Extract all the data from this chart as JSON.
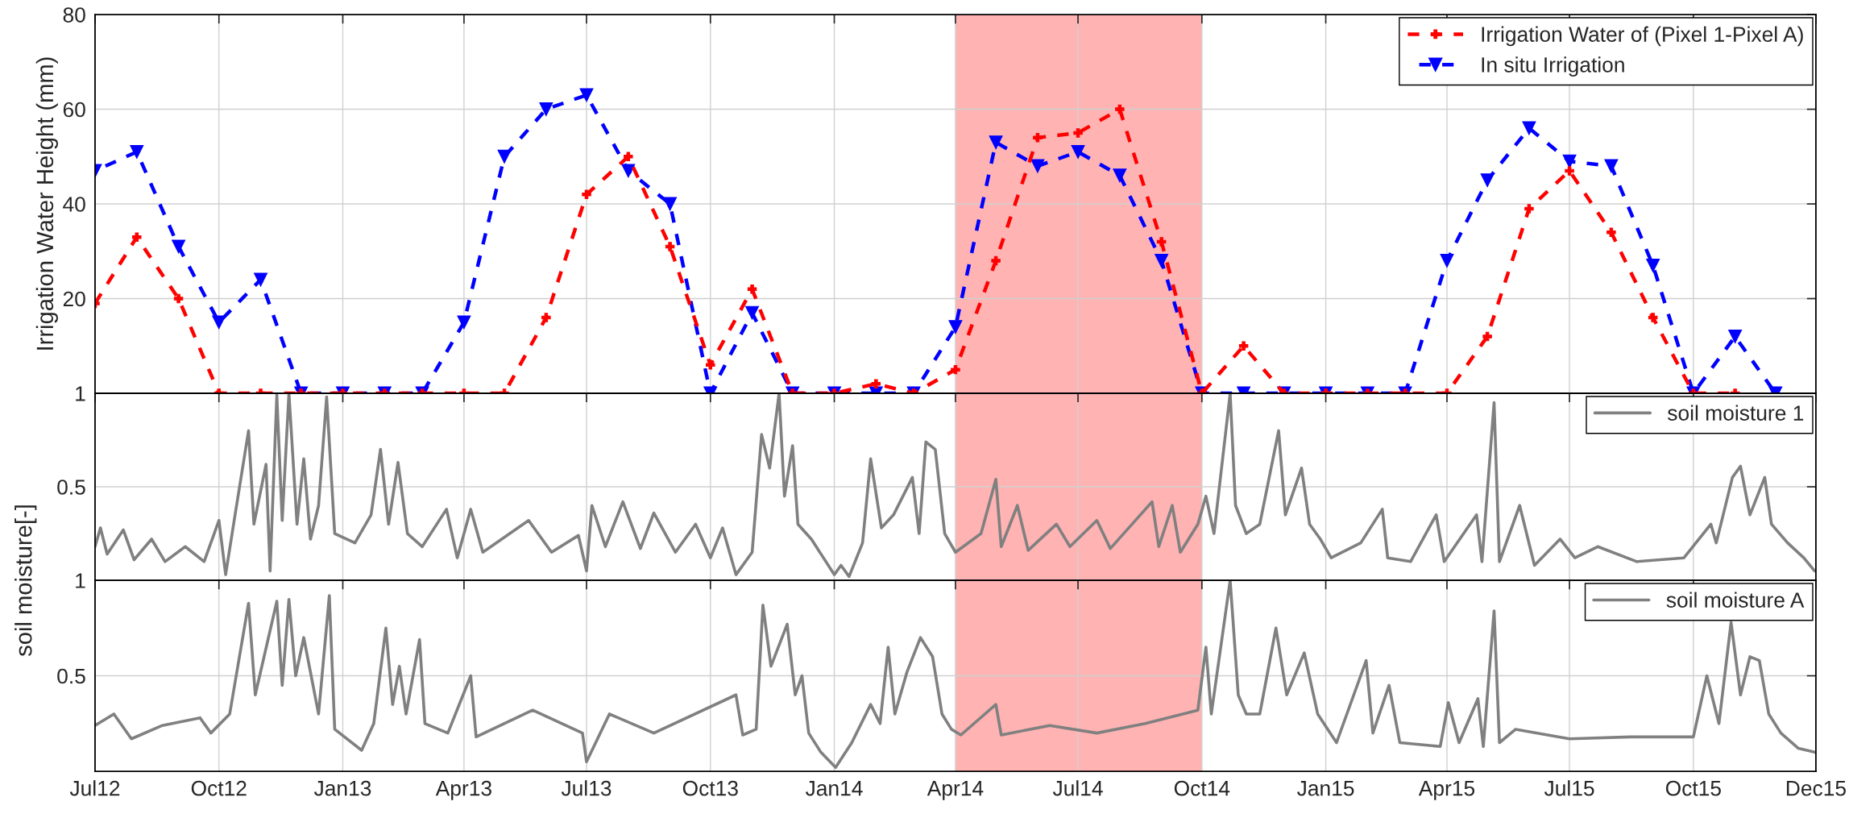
{
  "chart_data": [
    {
      "type": "line",
      "ylabel": "Irrigation Water Height (mm)",
      "xlim": [
        "2012-07-01",
        "2015-12-31"
      ],
      "ylim": [
        0,
        80
      ],
      "yticks": [
        20,
        40,
        60,
        80
      ],
      "xticks": [
        {
          "value": "2012-07-01",
          "label": null
        },
        {
          "value": "2012-10-01",
          "label": null
        },
        {
          "value": "2013-01-01",
          "label": null
        },
        {
          "value": "2013-04-01",
          "label": null
        },
        {
          "value": "2013-07-01",
          "label": null
        },
        {
          "value": "2013-10-01",
          "label": null
        },
        {
          "value": "2014-01-01",
          "label": null
        },
        {
          "value": "2014-04-01",
          "label": null
        },
        {
          "value": "2014-07-01",
          "label": null
        },
        {
          "value": "2014-10-01",
          "label": null
        },
        {
          "value": "2015-01-01",
          "label": null
        },
        {
          "value": "2015-04-01",
          "label": null
        },
        {
          "value": "2015-07-01",
          "label": null
        },
        {
          "value": "2015-10-01",
          "label": null
        },
        {
          "value": "2015-12-31",
          "label": null
        }
      ],
      "tick_labels": "y",
      "grid": true,
      "legend": "top right",
      "line_style": "dashed",
      "x": [
        "2012-07",
        "2012-08",
        "2012-09",
        "2012-10",
        "2012-11",
        "2012-12",
        "2013-01",
        "2013-02",
        "2013-03",
        "2013-04",
        "2013-05",
        "2013-06",
        "2013-07",
        "2013-08",
        "2013-09",
        "2013-10",
        "2013-11",
        "2013-12",
        "2014-01",
        "2014-02",
        "2014-03",
        "2014-04",
        "2014-05",
        "2014-06",
        "2014-07",
        "2014-08",
        "2014-09",
        "2014-10",
        "2014-11",
        "2014-12",
        "2015-01",
        "2015-02",
        "2015-03",
        "2015-04",
        "2015-05",
        "2015-06",
        "2015-07",
        "2015-08",
        "2015-09",
        "2015-10",
        "2015-11",
        "2015-12"
      ],
      "bands": [
        {
          "axis": "x",
          "from": "2014-04-01",
          "to": "2014-10-01",
          "color": "#ffb3b3"
        }
      ],
      "series": [
        {
          "name": "Irrigation Water of (Pixel 1-Pixel A)",
          "color": "#ff0000",
          "marker": "cross",
          "values": [
            19,
            33,
            20,
            0,
            0,
            0,
            0,
            0,
            0,
            0,
            0,
            16,
            42,
            50,
            31,
            6,
            22,
            0,
            0,
            2,
            0,
            5,
            28,
            54,
            55,
            60,
            32,
            0,
            10,
            0,
            0,
            0,
            0,
            0,
            12,
            39,
            47,
            34,
            16,
            0,
            0,
            null
          ]
        },
        {
          "name": "In situ Irrigation",
          "color": "#0000ff",
          "marker": "triangle",
          "values": [
            47,
            51,
            31,
            15,
            24,
            0,
            0,
            0,
            0,
            15,
            50,
            60,
            63,
            47,
            40,
            0,
            17,
            0,
            0,
            0,
            0,
            14,
            53,
            48,
            51,
            46,
            28,
            0,
            0,
            0,
            0,
            0,
            0,
            28,
            45,
            56,
            49,
            48,
            27,
            0,
            12,
            0
          ]
        }
      ]
    },
    {
      "type": "line",
      "ylabel": "soil moisture[-]",
      "xlim": [
        "2012-07-01",
        "2015-12-31"
      ],
      "ylim": [
        0,
        1
      ],
      "yticks": [
        0.5,
        1
      ],
      "xticks": [
        {
          "value": "2012-07-01",
          "label": null
        },
        {
          "value": "2012-10-01",
          "label": null
        },
        {
          "value": "2013-01-01",
          "label": null
        },
        {
          "value": "2013-04-01",
          "label": null
        },
        {
          "value": "2013-07-01",
          "label": null
        },
        {
          "value": "2013-10-01",
          "label": null
        },
        {
          "value": "2014-01-01",
          "label": null
        },
        {
          "value": "2014-04-01",
          "label": null
        },
        {
          "value": "2014-07-01",
          "label": null
        },
        {
          "value": "2014-10-01",
          "label": null
        },
        {
          "value": "2015-01-01",
          "label": null
        },
        {
          "value": "2015-04-01",
          "label": null
        },
        {
          "value": "2015-07-01",
          "label": null
        },
        {
          "value": "2015-10-01",
          "label": null
        },
        {
          "value": "2015-12-31",
          "label": null
        }
      ],
      "tick_labels": "y",
      "grid": true,
      "legend": "top right",
      "line_style": "solid",
      "bands": [
        {
          "axis": "x",
          "from": "2014-04-01",
          "to": "2014-10-01",
          "color": "#ffb3b3"
        }
      ],
      "series": [
        {
          "name": "soil moisture 1",
          "color": "#808080",
          "x": [
            "2012-07-01",
            "2012-07-05",
            "2012-07-10",
            "2012-07-22",
            "2012-07-30",
            "2012-08-12",
            "2012-08-22",
            "2012-09-06",
            "2012-09-20",
            "2012-10-01",
            "2012-10-06",
            "2012-10-13",
            "2012-10-23",
            "2012-10-27",
            "2012-11-05",
            "2012-11-08",
            "2012-11-13",
            "2012-11-17",
            "2012-11-22",
            "2012-11-28",
            "2012-12-03",
            "2012-12-08",
            "2012-12-14",
            "2012-12-20",
            "2012-12-26",
            "2013-01-10",
            "2013-01-22",
            "2013-01-29",
            "2013-02-04",
            "2013-02-11",
            "2013-02-18",
            "2013-03-01",
            "2013-03-19",
            "2013-03-27",
            "2013-04-06",
            "2013-04-15",
            "2013-05-19",
            "2013-06-05",
            "2013-06-25",
            "2013-07-01",
            "2013-07-05",
            "2013-07-15",
            "2013-07-28",
            "2013-08-10",
            "2013-08-20",
            "2013-09-05",
            "2013-09-20",
            "2013-10-01",
            "2013-10-10",
            "2013-10-20",
            "2013-11-01",
            "2013-11-08",
            "2013-11-14",
            "2013-11-21",
            "2013-11-25",
            "2013-12-01",
            "2013-12-05",
            "2013-12-15",
            "2014-01-01",
            "2014-01-06",
            "2014-01-12",
            "2014-01-22",
            "2014-01-28",
            "2014-02-05",
            "2014-02-14",
            "2014-02-28",
            "2014-03-05",
            "2014-03-10",
            "2014-03-17",
            "2014-03-24",
            "2014-04-01",
            "2014-04-20",
            "2014-05-01",
            "2014-05-05",
            "2014-05-17",
            "2014-05-25",
            "2014-06-15",
            "2014-06-25",
            "2014-07-15",
            "2014-07-25",
            "2014-08-25",
            "2014-08-30",
            "2014-09-09",
            "2014-09-15",
            "2014-09-28",
            "2014-10-04",
            "2014-10-10",
            "2014-10-22",
            "2014-10-26",
            "2014-11-03",
            "2014-11-13",
            "2014-11-27",
            "2014-12-02",
            "2014-12-14",
            "2014-12-20",
            "2014-12-28",
            "2015-01-05",
            "2015-01-27",
            "2015-02-12",
            "2015-02-16",
            "2015-03-05",
            "2015-03-24",
            "2015-03-30",
            "2015-04-23",
            "2015-04-27",
            "2015-05-06",
            "2015-05-10",
            "2015-05-25",
            "2015-06-05",
            "2015-06-24",
            "2015-07-05",
            "2015-07-22",
            "2015-08-20",
            "2015-09-24",
            "2015-10-14",
            "2015-10-18",
            "2015-10-30",
            "2015-11-05",
            "2015-11-12",
            "2015-11-23",
            "2015-11-28",
            "2015-12-10",
            "2015-12-22",
            "2015-12-30"
          ],
          "values": [
            0.18,
            0.28,
            0.14,
            0.27,
            0.11,
            0.22,
            0.1,
            0.18,
            0.1,
            0.32,
            0.03,
            0.35,
            0.8,
            0.3,
            0.62,
            0.05,
            0.99,
            0.32,
            1.0,
            0.3,
            0.65,
            0.22,
            0.4,
            0.98,
            0.25,
            0.2,
            0.35,
            0.7,
            0.3,
            0.63,
            0.25,
            0.18,
            0.38,
            0.12,
            0.38,
            0.15,
            0.32,
            0.15,
            0.24,
            0.05,
            0.4,
            0.18,
            0.42,
            0.17,
            0.36,
            0.15,
            0.3,
            0.12,
            0.28,
            0.03,
            0.15,
            0.78,
            0.6,
            1.0,
            0.45,
            0.72,
            0.3,
            0.22,
            0.03,
            0.08,
            0.02,
            0.2,
            0.65,
            0.28,
            0.35,
            0.55,
            0.25,
            0.74,
            0.7,
            0.25,
            0.15,
            0.25,
            0.54,
            0.18,
            0.4,
            0.16,
            0.3,
            0.18,
            0.32,
            0.17,
            0.42,
            0.18,
            0.4,
            0.15,
            0.3,
            0.45,
            0.25,
            1.0,
            0.4,
            0.25,
            0.3,
            0.8,
            0.35,
            0.6,
            0.3,
            0.22,
            0.12,
            0.2,
            0.38,
            0.12,
            0.1,
            0.35,
            0.1,
            0.35,
            0.1,
            0.95,
            0.1,
            0.4,
            0.08,
            0.22,
            0.12,
            0.18,
            0.1,
            0.12,
            0.3,
            0.2,
            0.55,
            0.61,
            0.35,
            0.55,
            0.3,
            0.2,
            0.12,
            0.05
          ]
        }
      ]
    },
    {
      "type": "line",
      "xlim": [
        "2012-07-01",
        "2015-12-31"
      ],
      "ylim": [
        0,
        1
      ],
      "yticks": [
        0.5,
        1
      ],
      "xticks": [
        {
          "value": "2012-07-01",
          "label": "Jul12"
        },
        {
          "value": "2012-10-01",
          "label": "Oct12"
        },
        {
          "value": "2013-01-01",
          "label": "Jan13"
        },
        {
          "value": "2013-04-01",
          "label": "Apr13"
        },
        {
          "value": "2013-07-01",
          "label": "Jul13"
        },
        {
          "value": "2013-10-01",
          "label": "Oct13"
        },
        {
          "value": "2014-01-01",
          "label": "Jan14"
        },
        {
          "value": "2014-04-01",
          "label": "Apr14"
        },
        {
          "value": "2014-07-01",
          "label": "Jul14"
        },
        {
          "value": "2014-10-01",
          "label": "Oct14"
        },
        {
          "value": "2015-01-01",
          "label": "Jan15"
        },
        {
          "value": "2015-04-01",
          "label": "Apr15"
        },
        {
          "value": "2015-07-01",
          "label": "Jul15"
        },
        {
          "value": "2015-10-01",
          "label": "Oct15"
        },
        {
          "value": "2015-12-31",
          "label": "Dec15"
        }
      ],
      "grid": true,
      "legend": "top right",
      "line_style": "solid",
      "bands": [
        {
          "axis": "x",
          "from": "2014-04-01",
          "to": "2014-10-01",
          "color": "#ffb3b3"
        }
      ],
      "series": [
        {
          "name": "soil moisture A",
          "color": "#808080",
          "x": [
            "2012-07-01",
            "2012-07-15",
            "2012-07-28",
            "2012-08-20",
            "2012-09-17",
            "2012-09-25",
            "2012-10-09",
            "2012-10-23",
            "2012-10-28",
            "2012-11-13",
            "2012-11-17",
            "2012-11-22",
            "2012-11-27",
            "2012-12-03",
            "2012-12-14",
            "2012-12-22",
            "2012-12-26",
            "2013-01-15",
            "2013-01-24",
            "2013-02-02",
            "2013-02-07",
            "2013-02-12",
            "2013-02-17",
            "2013-02-27",
            "2013-03-03",
            "2013-03-20",
            "2013-04-06",
            "2013-04-10",
            "2013-05-22",
            "2013-06-28",
            "2013-07-01",
            "2013-07-18",
            "2013-08-20",
            "2013-10-20",
            "2013-10-25",
            "2013-11-04",
            "2013-11-09",
            "2013-11-15",
            "2013-11-27",
            "2013-12-03",
            "2013-12-08",
            "2013-12-13",
            "2013-12-22",
            "2014-01-02",
            "2014-01-14",
            "2014-01-28",
            "2014-02-04",
            "2014-02-10",
            "2014-02-15",
            "2014-02-24",
            "2014-03-06",
            "2014-03-15",
            "2014-03-22",
            "2014-03-29",
            "2014-04-05",
            "2014-05-01",
            "2014-05-05",
            "2014-06-10",
            "2014-07-15",
            "2014-08-20",
            "2014-09-28",
            "2014-10-04",
            "2014-10-08",
            "2014-10-22",
            "2014-10-28",
            "2014-11-03",
            "2014-11-13",
            "2014-11-25",
            "2014-12-03",
            "2014-12-16",
            "2014-12-26",
            "2015-01-09",
            "2015-01-31",
            "2015-02-05",
            "2015-02-17",
            "2015-02-25",
            "2015-03-27",
            "2015-04-02",
            "2015-04-10",
            "2015-04-24",
            "2015-04-28",
            "2015-05-06",
            "2015-05-10",
            "2015-05-22",
            "2015-07-01",
            "2015-08-15",
            "2015-10-01",
            "2015-10-11",
            "2015-10-20",
            "2015-10-29",
            "2015-11-05",
            "2015-11-12",
            "2015-11-19",
            "2015-11-26",
            "2015-12-05",
            "2015-12-18",
            "2015-12-30"
          ],
          "values": [
            0.24,
            0.3,
            0.17,
            0.24,
            0.28,
            0.2,
            0.3,
            0.88,
            0.4,
            0.89,
            0.45,
            0.9,
            0.5,
            0.7,
            0.3,
            0.92,
            0.22,
            0.11,
            0.25,
            0.75,
            0.35,
            0.55,
            0.3,
            0.69,
            0.25,
            0.2,
            0.5,
            0.18,
            0.32,
            0.2,
            0.05,
            0.3,
            0.2,
            0.4,
            0.19,
            0.22,
            0.87,
            0.55,
            0.77,
            0.4,
            0.5,
            0.2,
            0.1,
            0.02,
            0.15,
            0.35,
            0.25,
            0.65,
            0.3,
            0.52,
            0.7,
            0.6,
            0.3,
            0.22,
            0.19,
            0.35,
            0.19,
            0.24,
            0.2,
            0.25,
            0.32,
            0.65,
            0.3,
            1.0,
            0.4,
            0.3,
            0.3,
            0.75,
            0.4,
            0.62,
            0.3,
            0.15,
            0.58,
            0.2,
            0.45,
            0.15,
            0.13,
            0.36,
            0.15,
            0.38,
            0.13,
            0.84,
            0.15,
            0.22,
            0.17,
            0.18,
            0.18,
            0.5,
            0.25,
            0.78,
            0.4,
            0.6,
            0.58,
            0.3,
            0.2,
            0.12,
            0.1
          ]
        }
      ]
    }
  ]
}
